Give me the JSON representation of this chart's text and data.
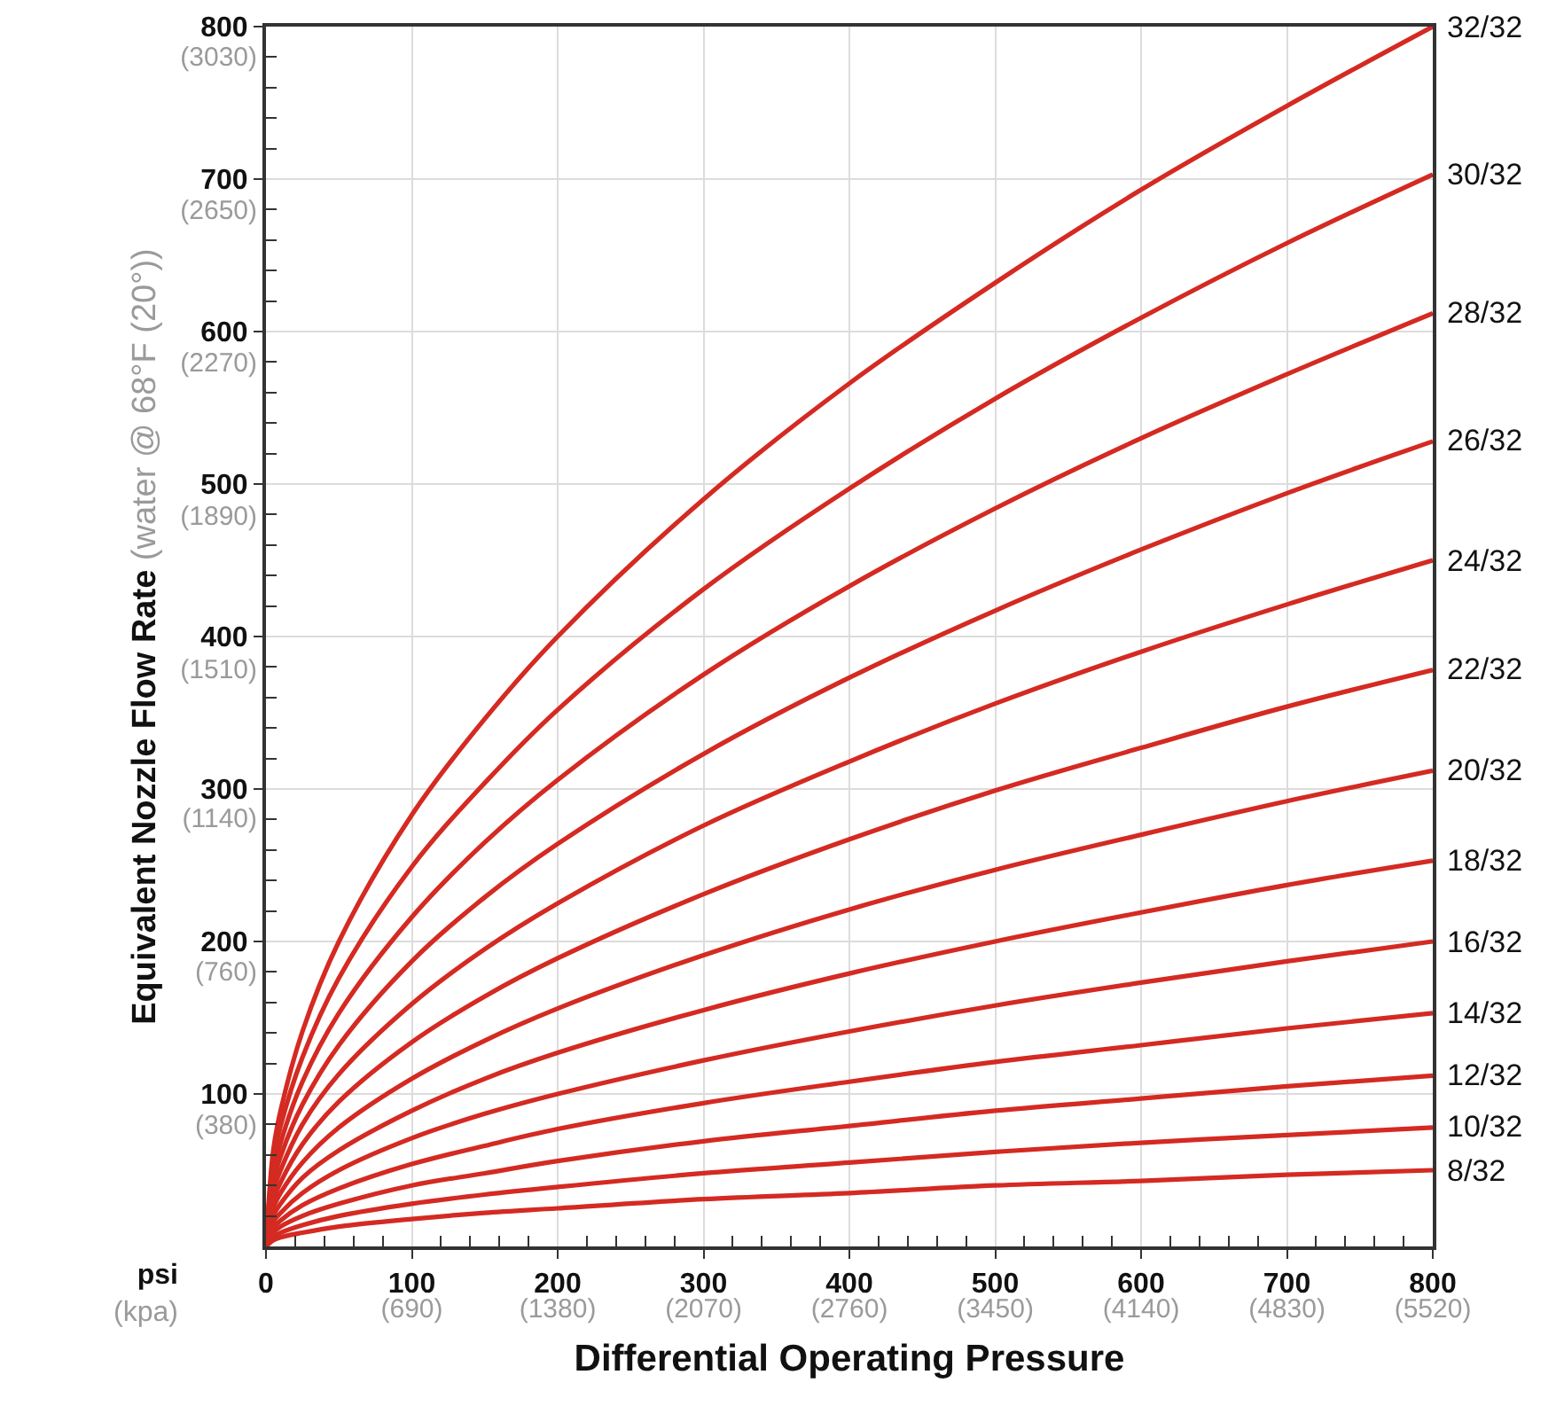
{
  "chart_data": {
    "type": "line",
    "xlabel": "Differential Operating Pressure",
    "y2label": "Equivalent Nozzle Flow Rate (water @ 68°F (20°))",
    "x": [
      0,
      5,
      10,
      25,
      50,
      100,
      150,
      200,
      300,
      400,
      500,
      600,
      700,
      800
    ],
    "xlim": [
      0,
      800
    ],
    "ylim": [
      0,
      800
    ],
    "x2lim": [
      0,
      5520
    ],
    "y2lim": [
      77,
      3103
    ],
    "xticks": [
      0,
      {
        "value": 20,
        "label": null
      },
      {
        "value": 40,
        "label": null
      },
      {
        "value": 60,
        "label": null
      },
      {
        "value": 80,
        "label": null
      },
      100,
      {
        "value": 120,
        "label": null
      },
      {
        "value": 140,
        "label": null
      },
      {
        "value": 160,
        "label": null
      },
      {
        "value": 180,
        "label": null
      },
      200,
      {
        "value": 220,
        "label": null
      },
      {
        "value": 240,
        "label": null
      },
      {
        "value": 260,
        "label": null
      },
      {
        "value": 280,
        "label": null
      },
      300,
      {
        "value": 320,
        "label": null
      },
      {
        "value": 340,
        "label": null
      },
      {
        "value": 360,
        "label": null
      },
      {
        "value": 380,
        "label": null
      },
      400,
      {
        "value": 420,
        "label": null
      },
      {
        "value": 440,
        "label": null
      },
      {
        "value": 460,
        "label": null
      },
      {
        "value": 480,
        "label": null
      },
      500,
      {
        "value": 520,
        "label": null
      },
      {
        "value": 540,
        "label": null
      },
      {
        "value": 560,
        "label": null
      },
      {
        "value": 580,
        "label": null
      },
      600,
      {
        "value": 620,
        "label": null
      },
      {
        "value": 640,
        "label": null
      },
      {
        "value": 660,
        "label": null
      },
      {
        "value": 680,
        "label": null
      },
      700,
      {
        "value": 720,
        "label": null
      },
      {
        "value": 740,
        "label": null
      },
      {
        "value": 760,
        "label": null
      },
      {
        "value": 780,
        "label": null
      },
      800
    ],
    "x2ticks": [
      {
        "value": 690,
        "label": "(690)"
      },
      {
        "value": 1380,
        "label": "(1380)"
      },
      {
        "value": 2070,
        "label": "(2070)"
      },
      {
        "value": 2760,
        "label": "(2760)"
      },
      {
        "value": 3450,
        "label": "(3450)"
      },
      {
        "value": 4140,
        "label": "(4140)"
      },
      {
        "value": 4830,
        "label": "(4830)"
      },
      {
        "value": 5520,
        "label": "(5520)"
      }
    ],
    "yticks": [
      {
        "value": 20,
        "label": null
      },
      {
        "value": 40,
        "label": null
      },
      {
        "value": 60,
        "label": null
      },
      {
        "value": 80,
        "label": null
      },
      100,
      {
        "value": 120,
        "label": null
      },
      {
        "value": 140,
        "label": null
      },
      {
        "value": 160,
        "label": null
      },
      {
        "value": 180,
        "label": null
      },
      200,
      {
        "value": 220,
        "label": null
      },
      {
        "value": 240,
        "label": null
      },
      {
        "value": 260,
        "label": null
      },
      {
        "value": 280,
        "label": null
      },
      300,
      {
        "value": 320,
        "label": null
      },
      {
        "value": 340,
        "label": null
      },
      {
        "value": 360,
        "label": null
      },
      {
        "value": 380,
        "label": null
      },
      400,
      {
        "value": 420,
        "label": null
      },
      {
        "value": 440,
        "label": null
      },
      {
        "value": 460,
        "label": null
      },
      {
        "value": 480,
        "label": null
      },
      500,
      {
        "value": 520,
        "label": null
      },
      {
        "value": 540,
        "label": null
      },
      {
        "value": 560,
        "label": null
      },
      {
        "value": 580,
        "label": null
      },
      600,
      {
        "value": 620,
        "label": null
      },
      {
        "value": 640,
        "label": null
      },
      {
        "value": 660,
        "label": null
      },
      {
        "value": 680,
        "label": null
      },
      700,
      {
        "value": 720,
        "label": null
      },
      {
        "value": 740,
        "label": null
      },
      {
        "value": 760,
        "label": null
      },
      {
        "value": 780,
        "label": null
      },
      800
    ],
    "y2ticks": [
      {
        "value": 380,
        "label": "(380)"
      },
      {
        "value": 760,
        "label": "(760)"
      },
      {
        "value": 1140,
        "label": "(1140)"
      },
      {
        "value": 1510,
        "label": "(1510)"
      },
      {
        "value": 1890,
        "label": "(1890)"
      },
      {
        "value": 2270,
        "label": "(2270)"
      },
      {
        "value": 2650,
        "label": "(2650)"
      },
      {
        "value": 3030,
        "label": "(3030)"
      }
    ],
    "grid": true,
    "legend": false,
    "marker": "none",
    "line_style": "solid",
    "annotations": [
      "psi\n(kpa)"
    ],
    "series": [
      {
        "name": "32/32",
        "color": "#d42a22",
        "values": [
          0,
          63,
          89,
          141,
          200,
          283,
          346,
          400,
          490,
          566,
          632,
          693,
          748,
          800
        ]
      },
      {
        "name": "30/32",
        "color": "#d42a22",
        "values": [
          0,
          56,
          79,
          124,
          176,
          249,
          304,
          352,
          431,
          497,
          556,
          609,
          658,
          703
        ]
      },
      {
        "name": "28/32",
        "color": "#d42a22",
        "values": [
          0,
          48,
          68,
          108,
          153,
          216,
          265,
          306,
          375,
          433,
          484,
          530,
          572,
          612
        ]
      },
      {
        "name": "26/32",
        "color": "#d42a22",
        "values": [
          0,
          42,
          59,
          93,
          132,
          187,
          229,
          264,
          323,
          373,
          417,
          457,
          494,
          528
        ]
      },
      {
        "name": "24/32",
        "color": "#d42a22",
        "values": [
          0,
          36,
          50,
          80,
          113,
          159,
          195,
          225,
          276,
          318,
          356,
          390,
          421,
          450
        ]
      },
      {
        "name": "22/32",
        "color": "#d42a22",
        "values": [
          0,
          30,
          42,
          67,
          95,
          134,
          164,
          189,
          231,
          267,
          299,
          327,
          354,
          378
        ]
      },
      {
        "name": "20/32",
        "color": "#d42a22",
        "values": [
          0,
          25,
          35,
          55,
          78,
          110,
          135,
          156,
          191,
          221,
          247,
          270,
          292,
          312
        ]
      },
      {
        "name": "18/32",
        "color": "#d42a22",
        "values": [
          0,
          20,
          28,
          45,
          63,
          89,
          110,
          127,
          155,
          179,
          200,
          219,
          237,
          253
        ]
      },
      {
        "name": "16/32",
        "color": "#d42a22",
        "values": [
          0,
          16,
          22,
          35,
          50,
          71,
          87,
          100,
          122,
          141,
          158,
          173,
          187,
          200
        ]
      },
      {
        "name": "14/32",
        "color": "#d42a22",
        "values": [
          0,
          12,
          17,
          27,
          38,
          54,
          66,
          77,
          94,
          108,
          121,
          132,
          143,
          153
        ]
      },
      {
        "name": "12/32",
        "color": "#d42a22",
        "values": [
          0,
          9,
          13,
          20,
          28,
          40,
          48,
          56,
          69,
          79,
          89,
          97,
          105,
          112
        ]
      },
      {
        "name": "10/32",
        "color": "#d42a22",
        "values": [
          0,
          6,
          9,
          14,
          20,
          28,
          34,
          39,
          48,
          55,
          62,
          68,
          73,
          78
        ]
      },
      {
        "name": "8/32",
        "color": "#d42a22",
        "values": [
          0,
          4,
          6,
          9,
          13,
          18,
          22,
          25,
          31,
          35,
          40,
          43,
          47,
          50
        ]
      }
    ]
  }
}
